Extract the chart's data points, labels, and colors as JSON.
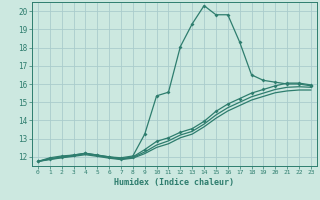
{
  "xlabel": "Humidex (Indice chaleur)",
  "xlim": [
    -0.5,
    23.5
  ],
  "ylim": [
    11.5,
    20.5
  ],
  "yticks": [
    12,
    13,
    14,
    15,
    16,
    17,
    18,
    19,
    20
  ],
  "xticks": [
    0,
    1,
    2,
    3,
    4,
    5,
    6,
    7,
    8,
    9,
    10,
    11,
    12,
    13,
    14,
    15,
    16,
    17,
    18,
    19,
    20,
    21,
    22,
    23
  ],
  "background_color": "#cce8e0",
  "grid_color": "#aacccc",
  "line_color": "#2e7d6e",
  "line1_x": [
    0,
    1,
    2,
    3,
    4,
    5,
    6,
    7,
    8,
    9,
    10,
    11,
    12,
    13,
    14,
    15,
    16,
    17,
    18,
    19,
    20,
    21,
    22,
    23
  ],
  "line1_y": [
    11.75,
    11.95,
    12.05,
    12.1,
    12.2,
    12.1,
    12.0,
    11.95,
    12.05,
    13.25,
    15.35,
    15.55,
    18.05,
    19.3,
    20.3,
    19.8,
    19.8,
    18.3,
    16.5,
    16.2,
    16.1,
    16.0,
    16.0,
    15.9
  ],
  "line2_x": [
    0,
    1,
    2,
    3,
    4,
    5,
    6,
    7,
    8,
    9,
    10,
    11,
    12,
    13,
    14,
    15,
    16,
    17,
    18,
    19,
    20,
    21,
    22,
    23
  ],
  "line2_y": [
    11.75,
    11.9,
    12.0,
    12.1,
    12.2,
    12.1,
    12.0,
    11.9,
    12.0,
    12.4,
    12.85,
    13.05,
    13.35,
    13.55,
    13.95,
    14.5,
    14.9,
    15.2,
    15.5,
    15.7,
    15.9,
    16.05,
    16.05,
    15.95
  ],
  "line3_x": [
    0,
    1,
    2,
    3,
    4,
    5,
    6,
    7,
    8,
    9,
    10,
    11,
    12,
    13,
    14,
    15,
    16,
    17,
    18,
    19,
    20,
    21,
    22,
    23
  ],
  "line3_y": [
    11.75,
    11.88,
    11.97,
    12.07,
    12.17,
    12.07,
    11.97,
    11.88,
    11.97,
    12.27,
    12.65,
    12.88,
    13.2,
    13.4,
    13.8,
    14.3,
    14.7,
    15.0,
    15.3,
    15.5,
    15.7,
    15.82,
    15.85,
    15.82
  ],
  "line4_x": [
    0,
    1,
    2,
    3,
    4,
    5,
    6,
    7,
    8,
    9,
    10,
    11,
    12,
    13,
    14,
    15,
    16,
    17,
    18,
    19,
    20,
    21,
    22,
    23
  ],
  "line4_y": [
    11.75,
    11.85,
    11.95,
    12.03,
    12.12,
    12.03,
    11.93,
    11.85,
    11.93,
    12.18,
    12.52,
    12.72,
    13.05,
    13.25,
    13.65,
    14.12,
    14.52,
    14.82,
    15.12,
    15.32,
    15.52,
    15.62,
    15.67,
    15.67
  ]
}
